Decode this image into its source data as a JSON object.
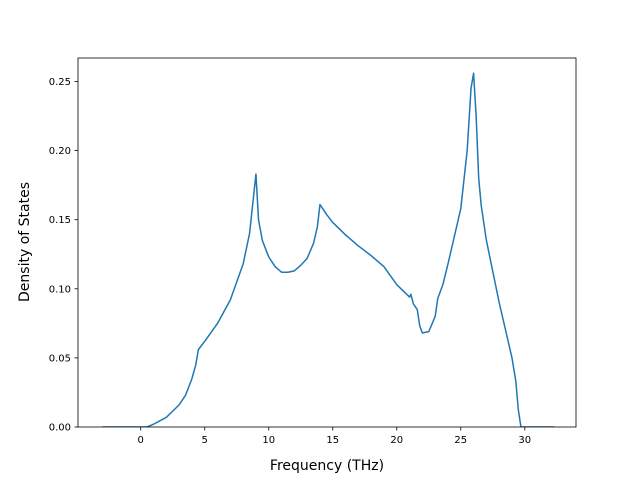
{
  "chart_data": {
    "type": "line",
    "xlabel": "Frequency (THz)",
    "ylabel": "Density of States",
    "color": "#1f77b4",
    "x": [
      -3,
      0.5,
      1,
      2,
      3,
      3.5,
      4,
      4.3,
      4.5,
      5,
      6,
      7,
      8,
      8.5,
      9,
      9.2,
      9.5,
      10,
      10.5,
      11,
      11.5,
      12,
      12.5,
      13,
      13.5,
      13.8,
      14,
      14.5,
      15,
      16,
      17,
      18,
      19,
      20,
      21,
      21.1,
      21.3,
      21.6,
      21.8,
      22,
      22.5,
      23,
      23.2,
      23.6,
      24,
      25,
      25.5,
      25.8,
      26,
      26.2,
      26.4,
      26.6,
      27,
      28,
      29,
      29.3,
      29.5,
      29.7,
      30,
      32.3
    ],
    "values": [
      0,
      0,
      0.002,
      0.007,
      0.016,
      0.023,
      0.035,
      0.045,
      0.056,
      0.062,
      0.075,
      0.092,
      0.118,
      0.14,
      0.183,
      0.15,
      0.135,
      0.123,
      0.116,
      0.112,
      0.112,
      0.113,
      0.117,
      0.122,
      0.133,
      0.145,
      0.161,
      0.154,
      0.148,
      0.139,
      0.131,
      0.124,
      0.116,
      0.103,
      0.094,
      0.096,
      0.089,
      0.085,
      0.073,
      0.068,
      0.069,
      0.08,
      0.093,
      0.103,
      0.118,
      0.158,
      0.2,
      0.245,
      0.256,
      0.225,
      0.18,
      0.16,
      0.135,
      0.09,
      0.05,
      0.033,
      0.012,
      0,
      0,
      0
    ],
    "xlim": [
      -4.9,
      34.0
    ],
    "xticks": [
      0,
      5,
      10,
      15,
      20,
      25,
      30
    ],
    "ylim": [
      0,
      0.267
    ],
    "yticks": [
      {
        "value": 0,
        "label": "0.00"
      },
      0.05,
      {
        "value": 0.1,
        "label": "0.10"
      },
      0.15,
      {
        "value": 0.2,
        "label": "0.20"
      },
      0.25
    ]
  }
}
